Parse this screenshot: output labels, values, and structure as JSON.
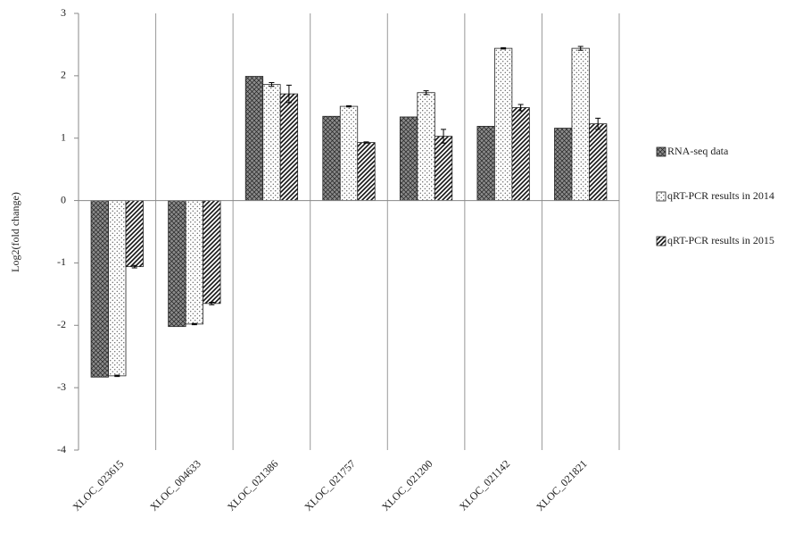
{
  "chart_data": {
    "type": "bar",
    "y_label": "Log2(fold change)",
    "categories": [
      "XLOC_023615",
      "XLOC_004633",
      "XLOC_021386",
      "XLOC_021757",
      "XLOC_021200",
      "XLOC_021142",
      "XLOC_021821"
    ],
    "series": [
      {
        "name": "RNA-seq data",
        "color": "#8c8c8c",
        "pattern": "crosshatch",
        "values": [
          -2.83,
          -2.02,
          1.99,
          1.35,
          1.34,
          1.19,
          1.16
        ]
      },
      {
        "name": "qRT-PCR results in 2014",
        "color": "#ffffff",
        "pattern": "dots",
        "values": [
          -2.81,
          -1.98,
          1.86,
          1.51,
          1.73,
          2.44,
          2.44
        ],
        "errors": [
          0.01,
          0.01,
          0.03,
          0.01,
          0.03,
          0.01,
          0.03
        ]
      },
      {
        "name": "qRT-PCR results in 2015",
        "color": "#ffffff",
        "pattern": "diagonal",
        "values": [
          -1.06,
          -1.65,
          1.71,
          0.93,
          1.03,
          1.49,
          1.23
        ],
        "errors": [
          0.02,
          0.02,
          0.14,
          0.01,
          0.11,
          0.05,
          0.09
        ]
      }
    ],
    "ylim": [
      -4,
      3
    ],
    "yticks": [
      -4,
      -3,
      -2,
      -1,
      0,
      1,
      2,
      3
    ],
    "category_separators": true,
    "legend": "right"
  }
}
